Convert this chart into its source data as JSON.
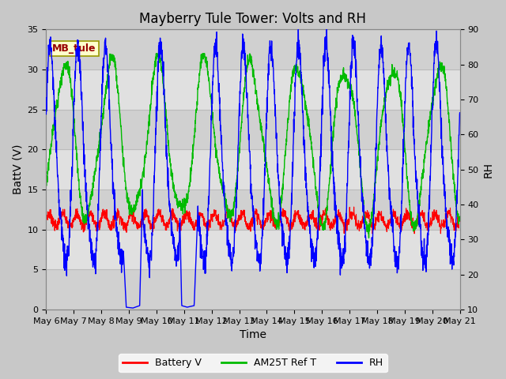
{
  "title": "Mayberry Tule Tower: Volts and RH",
  "xlabel": "Time",
  "ylabel_left": "BattV (V)",
  "ylabel_right": "RH",
  "station_label": "MB_tule",
  "xlim": [
    0,
    15
  ],
  "ylim_left": [
    0,
    35
  ],
  "ylim_right": [
    10,
    90
  ],
  "yticks_left": [
    0,
    5,
    10,
    15,
    20,
    25,
    30,
    35
  ],
  "yticks_right": [
    10,
    20,
    30,
    40,
    50,
    60,
    70,
    80,
    90
  ],
  "xtick_labels": [
    "May 6",
    "May 7",
    "May 8",
    "May 9",
    "May 10",
    "May 11",
    "May 12",
    "May 13",
    "May 14",
    "May 15",
    "May 16",
    "May 17",
    "May 18",
    "May 19",
    "May 20",
    "May 21"
  ],
  "fig_bg_color": "#c8c8c8",
  "plot_bg_color": "#d8d8d8",
  "band_colors": [
    "#d0d0d0",
    "#e0e0e0"
  ],
  "grid_color": "#bbbbbb",
  "legend_entries": [
    "Battery V",
    "AM25T Ref T",
    "RH"
  ],
  "legend_colors": [
    "#ff0000",
    "#00bb00",
    "#0000ff"
  ],
  "line_colors": [
    "#ff0000",
    "#00bb00",
    "#0000ff"
  ],
  "title_fontsize": 12,
  "axis_label_fontsize": 10,
  "tick_fontsize": 8,
  "legend_fontsize": 9,
  "station_label_color": "#990000",
  "station_box_facecolor": "#ffffcc",
  "station_box_edgecolor": "#999900"
}
